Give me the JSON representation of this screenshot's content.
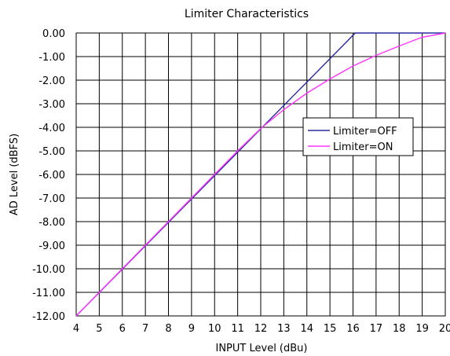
{
  "chart_data": {
    "type": "line",
    "title": "Limiter Characteristics",
    "xlabel": "INPUT Level (dBu)",
    "ylabel": "AD Level (dBFS)",
    "xlim": [
      4,
      20
    ],
    "ylim": [
      -12,
      0
    ],
    "x_ticks": [
      "4",
      "5",
      "6",
      "7",
      "8",
      "9",
      "10",
      "11",
      "12",
      "13",
      "14",
      "15",
      "16",
      "17",
      "18",
      "19",
      "20"
    ],
    "y_ticks": [
      "0.00",
      "-1.00",
      "-2.00",
      "-3.00",
      "-4.00",
      "-5.00",
      "-6.00",
      "-7.00",
      "-8.00",
      "-9.00",
      "-10.00",
      "-11.00",
      "-12.00"
    ],
    "grid": true,
    "legend_position": "right",
    "series": [
      {
        "name": "Limiter=OFF",
        "color": "#2b2b9f",
        "x": [
          4,
          16.1,
          20
        ],
        "y": [
          -12,
          0,
          0
        ]
      },
      {
        "name": "Limiter=ON",
        "color": "#ff33ff",
        "x": [
          4,
          11,
          12,
          13,
          14,
          15,
          16,
          17,
          18,
          19,
          20
        ],
        "y": [
          -12,
          -5,
          -4.05,
          -3.25,
          -2.55,
          -1.95,
          -1.4,
          -0.95,
          -0.55,
          -0.18,
          0
        ]
      }
    ]
  }
}
